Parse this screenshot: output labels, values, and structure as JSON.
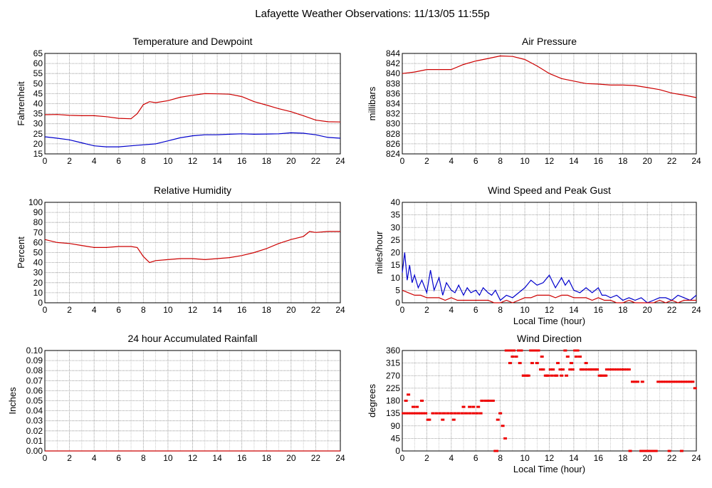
{
  "page_title": "Lafayette Weather Observations: 11/13/05 11:55p",
  "chart_data": [
    {
      "type": "line",
      "title": "Temperature and Dewpoint",
      "xlabel": "",
      "ylabel": "Fahrenheit",
      "xlim": [
        0,
        24
      ],
      "ylim": [
        15,
        65
      ],
      "xticks": [
        "0",
        "2",
        "4",
        "6",
        "8",
        "10",
        "12",
        "14",
        "16",
        "18",
        "20",
        "22",
        "24"
      ],
      "yticks": [
        "15",
        "20",
        "25",
        "30",
        "35",
        "40",
        "45",
        "50",
        "55",
        "60",
        "65"
      ],
      "grid": true,
      "series": [
        {
          "color": "#cc0000",
          "x": [
            0,
            1,
            2,
            3,
            4,
            5,
            6,
            7,
            7.5,
            8,
            8.5,
            9,
            10,
            11,
            12,
            13,
            14,
            15,
            16,
            17,
            18,
            19,
            20,
            21,
            22,
            23,
            24
          ],
          "values": [
            34.5,
            34.6,
            34.2,
            34,
            34,
            33.5,
            32.7,
            32.5,
            35,
            39.5,
            41,
            40.5,
            41.5,
            43.2,
            44.2,
            45,
            44.9,
            44.7,
            43.5,
            41,
            39.3,
            37.5,
            36,
            34,
            31.8,
            31,
            30.9
          ]
        },
        {
          "color": "#0000cc",
          "x": [
            0,
            1,
            2,
            3,
            4,
            5,
            6,
            7,
            8,
            9,
            10,
            11,
            12,
            13,
            14,
            15,
            16,
            17,
            18,
            19,
            20,
            21,
            22,
            23,
            24
          ],
          "values": [
            23.5,
            22.8,
            22,
            20.5,
            19,
            18.5,
            18.5,
            19,
            19.5,
            20,
            21.5,
            23,
            24,
            24.5,
            24.5,
            24.8,
            25,
            24.8,
            24.9,
            25,
            25.5,
            25.3,
            24.5,
            23.2,
            22.8
          ]
        }
      ]
    },
    {
      "type": "line",
      "title": "Air Pressure",
      "xlabel": "",
      "ylabel": "millibars",
      "xlim": [
        0,
        24
      ],
      "ylim": [
        824,
        844
      ],
      "xticks": [
        "0",
        "2",
        "4",
        "6",
        "8",
        "10",
        "12",
        "14",
        "16",
        "18",
        "20",
        "22",
        "24"
      ],
      "yticks": [
        "824",
        "826",
        "828",
        "830",
        "832",
        "834",
        "836",
        "838",
        "840",
        "842",
        "844"
      ],
      "grid": true,
      "series": [
        {
          "color": "#cc0000",
          "x": [
            0,
            1,
            2,
            3,
            4,
            5,
            6,
            7,
            8,
            9,
            10,
            11,
            12,
            13,
            14,
            15,
            16,
            17,
            18,
            19,
            20,
            21,
            22,
            23,
            24
          ],
          "values": [
            840,
            840.3,
            840.8,
            840.8,
            840.8,
            841.8,
            842.5,
            843,
            843.5,
            843.4,
            842.8,
            841.5,
            840,
            839,
            838.5,
            838,
            837.9,
            837.7,
            837.7,
            837.6,
            837.2,
            836.8,
            836.1,
            835.7,
            835.2
          ]
        }
      ]
    },
    {
      "type": "line",
      "title": "Relative Humidity",
      "xlabel": "",
      "ylabel": "Percent",
      "xlim": [
        0,
        24
      ],
      "ylim": [
        0,
        100
      ],
      "xticks": [
        "0",
        "2",
        "4",
        "6",
        "8",
        "10",
        "12",
        "14",
        "16",
        "18",
        "20",
        "22",
        "24"
      ],
      "yticks": [
        "0",
        "10",
        "20",
        "30",
        "40",
        "50",
        "60",
        "70",
        "80",
        "90",
        "100"
      ],
      "grid": true,
      "series": [
        {
          "color": "#cc0000",
          "x": [
            0,
            1,
            2,
            3,
            4,
            5,
            6,
            7,
            7.5,
            8,
            8.5,
            9,
            10,
            11,
            12,
            13,
            14,
            15,
            16,
            17,
            18,
            19,
            20,
            21,
            21.5,
            22,
            23,
            24
          ],
          "values": [
            63,
            60,
            59,
            57,
            55,
            55,
            56,
            56,
            55,
            46,
            40,
            42,
            43,
            44,
            44,
            43,
            44,
            45,
            47,
            50,
            54,
            59,
            63,
            66,
            71,
            70,
            71,
            71
          ]
        }
      ]
    },
    {
      "type": "line",
      "title": "Wind Speed and Peak Gust",
      "xlabel": "Local Time (hour)",
      "ylabel": "miles/hour",
      "xlim": [
        0,
        24
      ],
      "ylim": [
        0,
        40
      ],
      "xticks": [
        "0",
        "2",
        "4",
        "6",
        "8",
        "10",
        "12",
        "14",
        "16",
        "18",
        "20",
        "22",
        "24"
      ],
      "yticks": [
        "0",
        "5",
        "10",
        "15",
        "20",
        "25",
        "30",
        "35",
        "40"
      ],
      "grid": true,
      "series": [
        {
          "color": "#0000cc",
          "x": [
            0,
            0.2,
            0.4,
            0.6,
            0.8,
            1,
            1.3,
            1.6,
            2,
            2.3,
            2.6,
            3,
            3.3,
            3.6,
            4,
            4.3,
            4.6,
            5,
            5.3,
            5.6,
            6,
            6.3,
            6.6,
            7,
            7.3,
            7.6,
            8,
            8.5,
            9,
            9.5,
            10,
            10.5,
            11,
            11.5,
            12,
            12.5,
            13,
            13.3,
            13.6,
            14,
            14.5,
            15,
            15.5,
            16,
            16.3,
            16.6,
            17,
            17.5,
            18,
            18.5,
            19,
            19.5,
            20,
            20.5,
            21,
            21.5,
            22,
            22.5,
            23,
            23.5,
            24
          ],
          "values": [
            12,
            20,
            9,
            15,
            8,
            11,
            6,
            9,
            4,
            13,
            5,
            10,
            3,
            8,
            5,
            4,
            7,
            3,
            6,
            4,
            5,
            3,
            6,
            4,
            3,
            5,
            1,
            3,
            2,
            4,
            6,
            9,
            7,
            8,
            11,
            6,
            10,
            7,
            9,
            5,
            4,
            6,
            4,
            6,
            3,
            3,
            2,
            3,
            1,
            2,
            1,
            2,
            0,
            1,
            2,
            2,
            1,
            3,
            2,
            1,
            3
          ]
        },
        {
          "color": "#cc0000",
          "x": [
            0,
            0.5,
            1,
            1.5,
            2,
            2.5,
            3,
            3.5,
            4,
            4.5,
            5,
            5.5,
            6,
            6.5,
            7,
            7.5,
            8,
            8.5,
            9,
            9.5,
            10,
            10.5,
            11,
            11.5,
            12,
            12.5,
            13,
            13.5,
            14,
            14.5,
            15,
            15.5,
            16,
            16.5,
            17,
            17.5,
            18,
            18.5,
            19,
            19.5,
            20,
            20.5,
            21,
            21.5,
            22,
            22.5,
            23,
            23.5,
            24
          ],
          "values": [
            5,
            4,
            3,
            3,
            2,
            2,
            2,
            1,
            2,
            1,
            1,
            1,
            1,
            1,
            1,
            0,
            0,
            1,
            0,
            1,
            2,
            2,
            3,
            3,
            3,
            2,
            3,
            3,
            2,
            2,
            2,
            1,
            2,
            1,
            1,
            0,
            0,
            1,
            0,
            0,
            0,
            0,
            1,
            0,
            1,
            0,
            1,
            1,
            1
          ]
        }
      ]
    },
    {
      "type": "line",
      "title": "24 hour Accumulated Rainfall",
      "xlabel": "",
      "ylabel": "Inches",
      "xlim": [
        0,
        24
      ],
      "ylim": [
        0,
        0.1
      ],
      "xticks": [
        "0",
        "2",
        "4",
        "6",
        "8",
        "10",
        "12",
        "14",
        "16",
        "18",
        "20",
        "22",
        "24"
      ],
      "yticks": [
        "0.00",
        "0.01",
        "0.02",
        "0.03",
        "0.04",
        "0.05",
        "0.06",
        "0.07",
        "0.08",
        "0.09",
        "0.10"
      ],
      "grid": true,
      "series": [
        {
          "color": "#cc0000",
          "x": [
            0,
            24
          ],
          "values": [
            0,
            0
          ]
        }
      ]
    },
    {
      "type": "scatter",
      "title": "Wind Direction",
      "xlabel": "Local Time (hour)",
      "ylabel": "degrees",
      "xlim": [
        0,
        24
      ],
      "ylim": [
        0,
        360
      ],
      "xticks": [
        "0",
        "2",
        "4",
        "6",
        "8",
        "10",
        "12",
        "14",
        "16",
        "18",
        "20",
        "22",
        "24"
      ],
      "yticks": [
        "0",
        "45",
        "90",
        "135",
        "180",
        "225",
        "270",
        "315",
        "360"
      ],
      "grid": true,
      "series": [
        {
          "color": "#ee0000",
          "x": [
            0.1,
            0.3,
            0.5,
            0.7,
            0.9,
            1.1,
            1.3,
            1.5,
            1.7,
            1.9,
            0.3,
            0.5,
            0.9,
            1.2,
            1.6,
            2.1,
            2.2,
            2.5,
            2.8,
            3.1,
            3.4,
            3.7,
            4.0,
            4.3,
            4.6,
            4.9,
            5.2,
            5.5,
            5.8,
            6.1,
            6.4,
            3.3,
            4.2,
            5.0,
            5.5,
            5.8,
            6.2,
            6.5,
            6.8,
            7.0,
            7.2,
            7.4,
            7.6,
            7.7,
            7.8,
            8.0,
            8.2,
            8.4,
            8.5,
            8.6,
            8.7,
            8.9,
            9.1,
            9.3,
            9.5,
            9.7,
            9.9,
            10.1,
            10.3,
            10.5,
            10.7,
            10.9,
            11.1,
            11.3,
            11.5,
            11.7,
            11.9,
            12.1,
            12.3,
            12.5,
            12.7,
            12.9,
            13.1,
            13.3,
            13.5,
            13.7,
            13.9,
            14.1,
            14.3,
            14.5,
            14.7,
            14.9,
            15.1,
            15.3,
            15.5,
            15.7,
            15.9,
            16.1,
            16.3,
            16.5,
            16.7,
            16.9,
            17.1,
            17.3,
            17.5,
            17.7,
            17.9,
            18.1,
            18.3,
            18.5,
            18.8,
            19.0,
            19.2,
            19.5,
            19.7,
            19.9,
            20.1,
            20.3,
            20.5,
            20.7,
            20.9,
            21.1,
            21.3,
            21.5,
            21.7,
            21.9,
            22.1,
            22.3,
            22.5,
            22.7,
            22.9,
            23.1,
            23.3,
            23.5,
            23.7,
            23.9,
            8.8,
            9.0,
            9.6,
            9.9,
            10.2,
            10.6,
            11.0,
            11.4,
            11.8,
            12.2,
            12.6,
            13.0,
            13.4,
            13.8,
            14.2,
            14.6,
            15.0,
            15.4,
            15.8,
            16.2,
            16.6,
            18.6,
            19.6,
            20.4,
            21.8,
            22.8
          ],
          "values": [
            135,
            135,
            135,
            135,
            135,
            135,
            135,
            135,
            135,
            135,
            180,
            202,
            158,
            158,
            180,
            112,
            112,
            135,
            135,
            135,
            135,
            135,
            135,
            135,
            135,
            135,
            135,
            135,
            135,
            135,
            135,
            112,
            112,
            158,
            158,
            158,
            158,
            180,
            180,
            180,
            180,
            180,
            0,
            0,
            112,
            135,
            90,
            45,
            360,
            360,
            360,
            360,
            360,
            338,
            360,
            360,
            270,
            270,
            270,
            360,
            360,
            360,
            360,
            292,
            292,
            270,
            270,
            292,
            292,
            270,
            315,
            292,
            292,
            360,
            338,
            292,
            292,
            360,
            360,
            338,
            292,
            292,
            292,
            292,
            292,
            292,
            292,
            270,
            270,
            270,
            292,
            292,
            292,
            292,
            292,
            292,
            292,
            292,
            292,
            292,
            248,
            248,
            248,
            0,
            0,
            0,
            0,
            0,
            0,
            0,
            248,
            248,
            248,
            248,
            248,
            248,
            248,
            248,
            248,
            248,
            248,
            248,
            248,
            248,
            248,
            225,
            315,
            338,
            315,
            270,
            270,
            315,
            315,
            338,
            270,
            270,
            270,
            270,
            270,
            315,
            338,
            292,
            315,
            292,
            292,
            270,
            270,
            0,
            248,
            0,
            0,
            0
          ]
        }
      ]
    }
  ]
}
